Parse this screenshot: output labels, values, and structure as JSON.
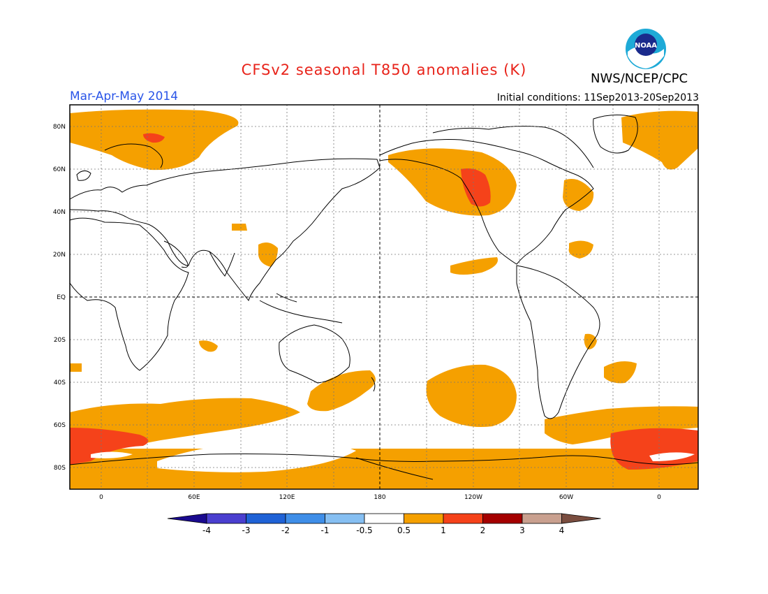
{
  "header": {
    "title": "CFSv2 seasonal T850 anomalies (K)",
    "organization": "NWS/NCEP/CPC",
    "logo_text": "NOAA",
    "season": "Mar-Apr-May 2014",
    "initial_conditions": "Initial conditions: 11Sep2013-20Sep2013"
  },
  "map": {
    "lat_labels": [
      "80N",
      "60N",
      "40N",
      "20N",
      "EQ",
      "20S",
      "40S",
      "60S",
      "80S"
    ],
    "lon_labels": [
      "0",
      "60E",
      "120E",
      "180",
      "120W",
      "60W",
      "0"
    ]
  },
  "colorbar": {
    "colors": [
      "#1a0a8f",
      "#4a3fcf",
      "#1f62d6",
      "#3f8ee8",
      "#86bff2",
      "#ffffff",
      "#f5a000",
      "#f5421a",
      "#a40000",
      "#c9a08f",
      "#7a4d3f"
    ],
    "labels": [
      "-4",
      "-3",
      "-2",
      "-1",
      "-0.5",
      "0.5",
      "1",
      "2",
      "3",
      "4"
    ]
  },
  "colors": {
    "anomaly_light": "#f5a000",
    "anomaly_strong": "#f5421a",
    "title": "#e8231a",
    "season": "#2a55e8",
    "logo": "#1eaad7"
  }
}
